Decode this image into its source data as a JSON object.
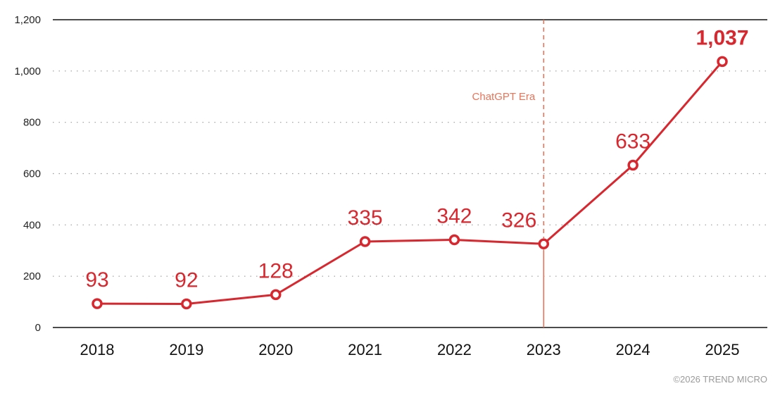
{
  "chart_data": {
    "type": "line",
    "title": "",
    "xlabel": "",
    "ylabel": "",
    "categories": [
      "2018",
      "2019",
      "2020",
      "2021",
      "2022",
      "2023",
      "2024",
      "2025"
    ],
    "series": [
      {
        "values": [
          93,
          92,
          128,
          335,
          342,
          326,
          633,
          1037
        ]
      }
    ],
    "data_labels": [
      "93",
      "92",
      "128",
      "335",
      "342",
      "326",
      "633",
      "1,037"
    ],
    "ylim": [
      0,
      1200
    ],
    "yticks": [
      0,
      200,
      400,
      600,
      800,
      1000,
      1200
    ],
    "ytick_labels": [
      "0",
      "200",
      "400",
      "600",
      "800",
      "1,000",
      "1,200"
    ],
    "grid": "horizontal dotted",
    "annotation": {
      "text": "ChatGPT Era",
      "at_category": "2023"
    },
    "colors": {
      "series": "#d7282f",
      "annotation": "#e8745a",
      "axis": "#111111",
      "grid": "#9a9a9a"
    }
  },
  "footer": {
    "copyright": "©2026 TREND MICRO"
  }
}
